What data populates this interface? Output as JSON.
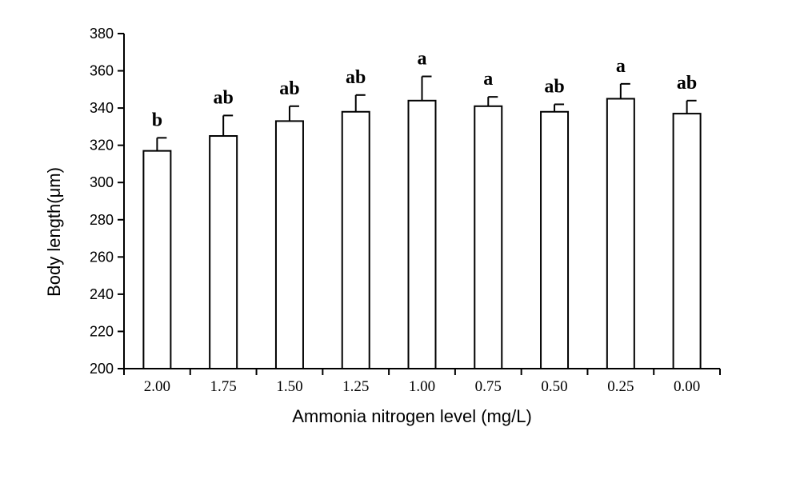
{
  "chart_data": {
    "type": "bar",
    "xlabel": "Ammonia nitrogen level (mg/L)",
    "ylabel": "Body length(μm)",
    "ylim": [
      200,
      380
    ],
    "yticks": [
      200,
      220,
      240,
      260,
      280,
      300,
      320,
      340,
      360,
      380
    ],
    "categories": [
      "2.00",
      "1.75",
      "1.50",
      "1.25",
      "1.00",
      "0.75",
      "0.50",
      "0.25",
      "0.00"
    ],
    "values": [
      317,
      325,
      333,
      338,
      344,
      341,
      338,
      345,
      337
    ],
    "errors": [
      7,
      11,
      8,
      9,
      13,
      5,
      4,
      8,
      7
    ],
    "significance_labels": [
      "b",
      "ab",
      "ab",
      "ab",
      "a",
      "a",
      "ab",
      "a",
      "ab"
    ],
    "grid": false,
    "bar_fill": "#ffffff",
    "bar_stroke": "#000000"
  }
}
